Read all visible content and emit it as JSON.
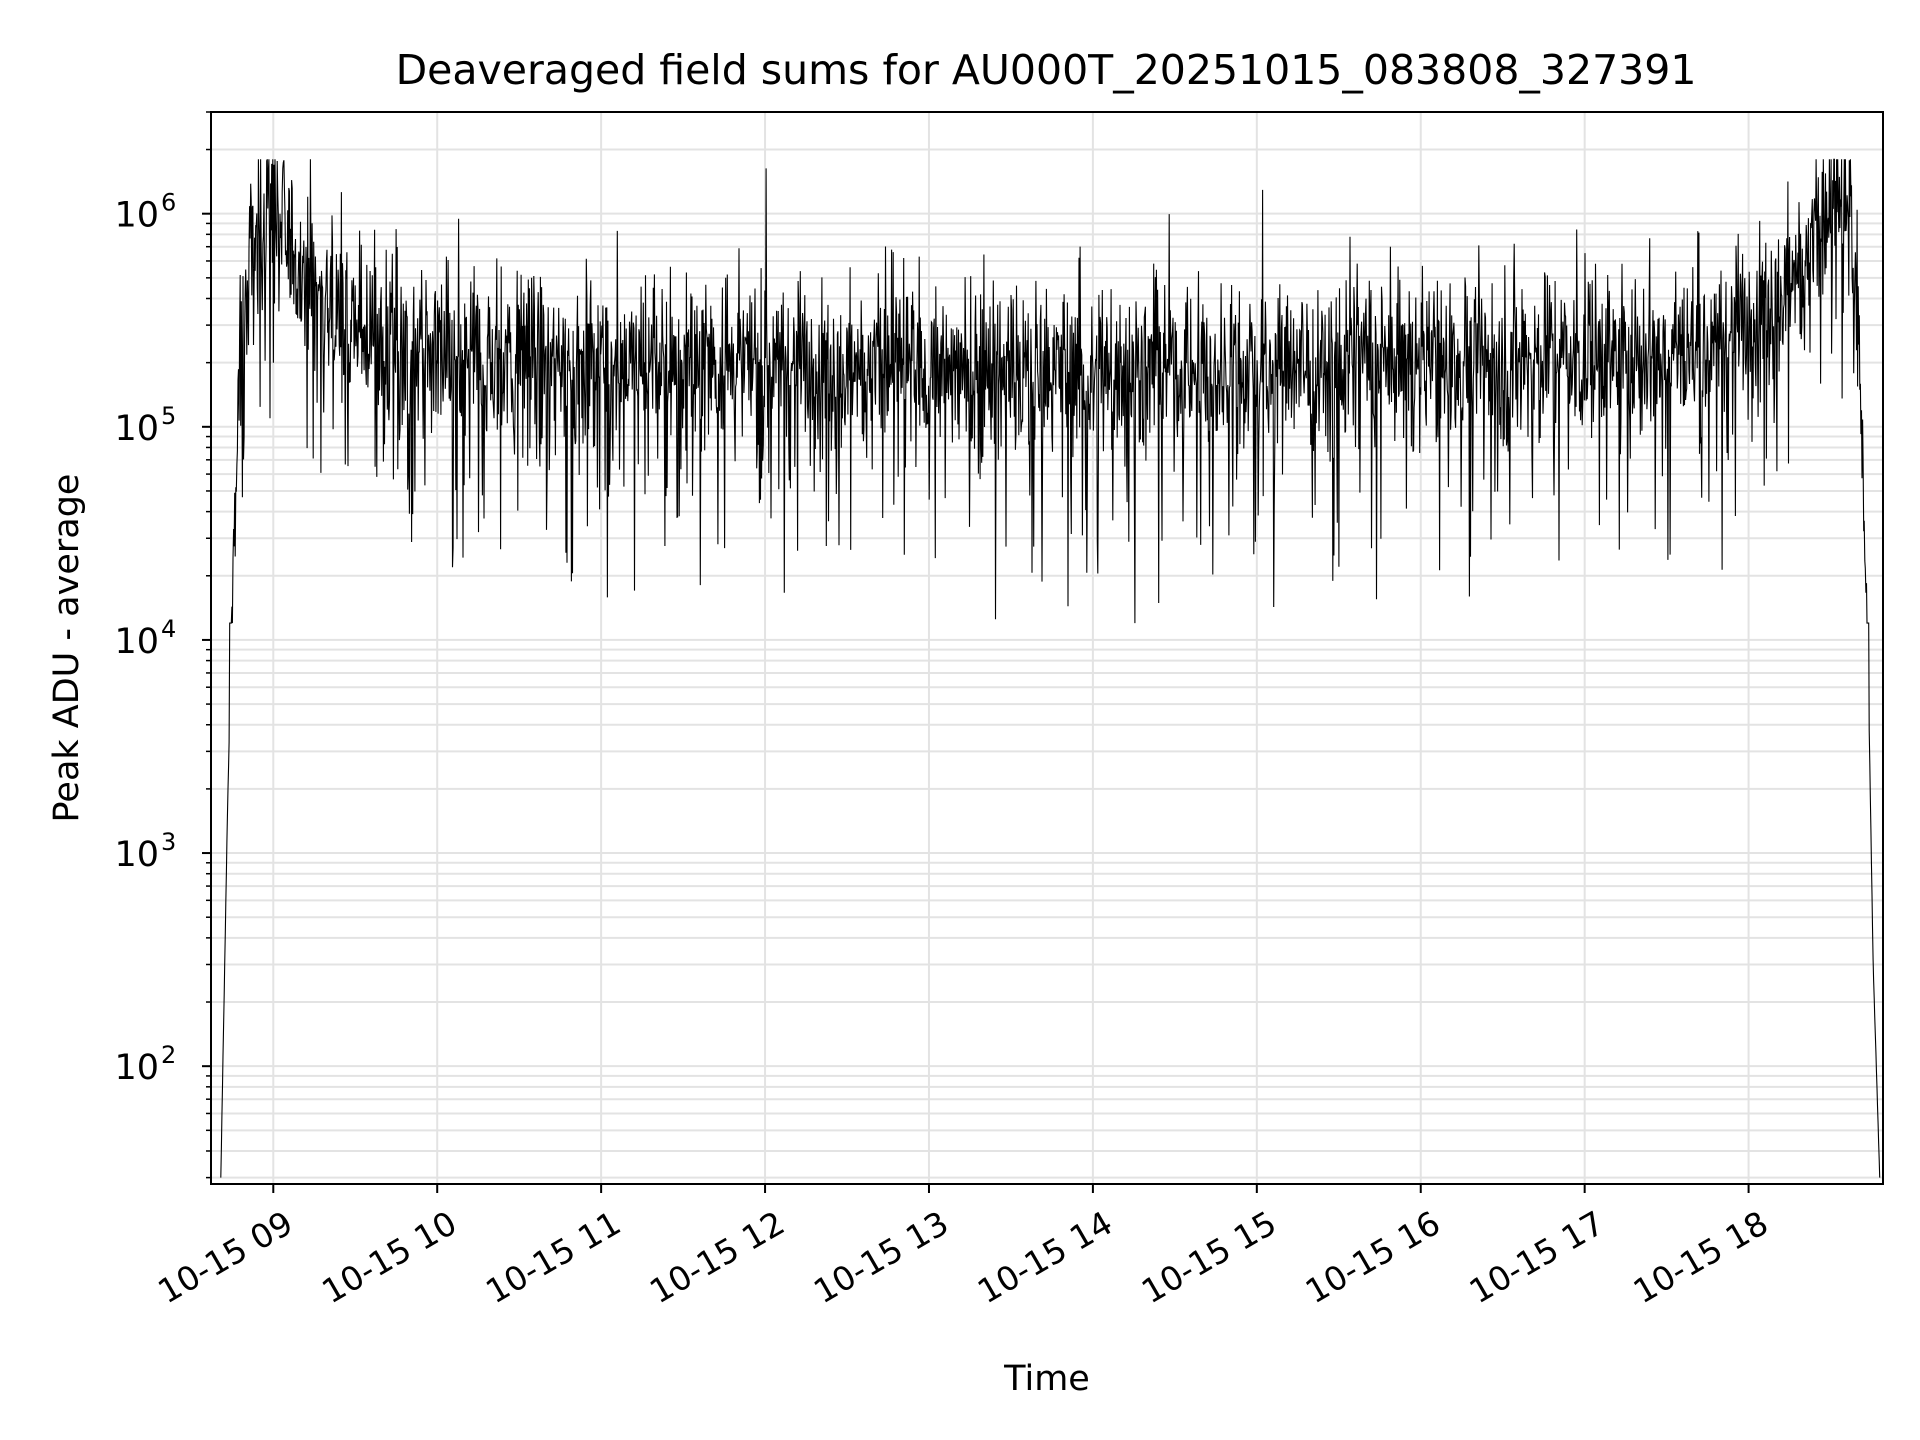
{
  "chart_data": {
    "type": "line",
    "title": "Deaveraged field sums for AU000T_20251015_083808_327391",
    "xlabel": "Time",
    "ylabel": "Peak ADU - average",
    "yscale": "log",
    "ylim": [
      28,
      3000000
    ],
    "xlim_hours": [
      8.62,
      18.82
    ],
    "grid": true,
    "line_color": "#000000",
    "x_ticks": [
      {
        "hour": 9,
        "label": "10-15 09"
      },
      {
        "hour": 10,
        "label": "10-15 10"
      },
      {
        "hour": 11,
        "label": "10-15 11"
      },
      {
        "hour": 12,
        "label": "10-15 12"
      },
      {
        "hour": 13,
        "label": "10-15 13"
      },
      {
        "hour": 14,
        "label": "10-15 14"
      },
      {
        "hour": 15,
        "label": "10-15 15"
      },
      {
        "hour": 16,
        "label": "10-15 16"
      },
      {
        "hour": 17,
        "label": "10-15 17"
      },
      {
        "hour": 18,
        "label": "10-15 18"
      }
    ],
    "y_ticks": [
      {
        "exp": 2,
        "base": "10",
        "sup": "2"
      },
      {
        "exp": 3,
        "base": "10",
        "sup": "3"
      },
      {
        "exp": 4,
        "base": "10",
        "sup": "4"
      },
      {
        "exp": 5,
        "base": "10",
        "sup": "5"
      },
      {
        "exp": 6,
        "base": "10",
        "sup": "6"
      }
    ],
    "series": [
      {
        "name": "Deaveraged field sum",
        "envelope": {
          "x_hours": [
            8.68,
            8.72,
            8.76,
            8.8,
            8.86,
            8.93,
            9.0,
            9.1,
            9.25,
            9.5,
            10.0,
            11.0,
            12.0,
            13.0,
            14.0,
            15.0,
            16.0,
            17.0,
            17.8,
            18.1,
            18.3,
            18.45,
            18.55,
            18.62,
            18.68,
            18.72,
            18.76,
            18.8
          ],
          "y": [
            30,
            1500,
            30000,
            200000,
            600000,
            900000,
            1000000,
            700000,
            450000,
            280000,
            210000,
            200000,
            200000,
            190000,
            180000,
            190000,
            210000,
            220000,
            240000,
            380000,
            550000,
            850000,
            1100000,
            900000,
            200000,
            20000,
            300,
            30
          ]
        },
        "noise_sigma_dex": 0.2,
        "dip_min": 12000,
        "spike_max": 1800000,
        "samples": 3000
      }
    ]
  }
}
